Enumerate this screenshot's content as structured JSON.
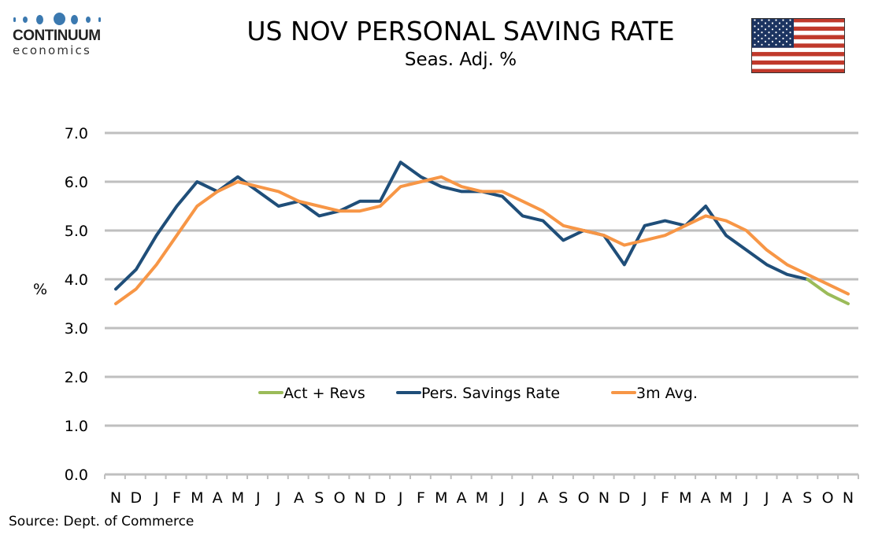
{
  "branding": {
    "logo_name": "CONTINUUM",
    "logo_sub": "economics"
  },
  "header": {
    "title": "US NOV PERSONAL SAVING RATE",
    "subtitle": "Seas. Adj. %",
    "flag_icon": "us-flag-icon"
  },
  "footer": {
    "source": "Source: Dept. of Commerce"
  },
  "colors": {
    "savings": "#1f4e79",
    "avg": "#f79646",
    "act_revs": "#9bbb59",
    "grid": "#bfbfbf",
    "logo_blue": "#3b79b0",
    "flag_blue": "#1c3461",
    "flag_red": "#c0392b"
  },
  "chart_data": {
    "type": "line",
    "title": "US NOV PERSONAL SAVING RATE",
    "subtitle": "Seas. Adj. %",
    "xlabel": "",
    "ylabel": "%",
    "ylim": [
      0,
      7
    ],
    "yticks": [
      "0.0",
      "1.0",
      "2.0",
      "3.0",
      "4.0",
      "5.0",
      "6.0",
      "7.0"
    ],
    "grid": true,
    "legend_position": "bottom-center-inside",
    "categories": [
      "N",
      "D",
      "J",
      "F",
      "M",
      "A",
      "M",
      "J",
      "J",
      "A",
      "S",
      "O",
      "N",
      "D",
      "J",
      "F",
      "M",
      "A",
      "M",
      "J",
      "J",
      "A",
      "S",
      "O",
      "N",
      "D",
      "J",
      "F",
      "M",
      "A",
      "M",
      "J",
      "J",
      "A",
      "S",
      "O",
      "N"
    ],
    "series": [
      {
        "name": "Act + Revs",
        "color": "#9bbb59",
        "values": [
          null,
          null,
          null,
          null,
          null,
          null,
          null,
          null,
          null,
          null,
          null,
          null,
          null,
          null,
          null,
          null,
          null,
          null,
          null,
          null,
          null,
          null,
          null,
          null,
          null,
          null,
          null,
          null,
          null,
          null,
          null,
          null,
          null,
          null,
          4.0,
          3.7,
          3.5
        ]
      },
      {
        "name": "Pers. Savings Rate",
        "color": "#1f4e79",
        "values": [
          3.8,
          4.2,
          4.9,
          5.5,
          6.0,
          5.8,
          6.1,
          5.8,
          5.5,
          5.6,
          5.3,
          5.4,
          5.6,
          5.6,
          6.4,
          6.1,
          5.9,
          5.8,
          5.8,
          5.7,
          5.3,
          5.2,
          4.8,
          5.0,
          4.9,
          4.3,
          5.1,
          5.2,
          5.1,
          5.5,
          4.9,
          4.6,
          4.3,
          4.1,
          4.0,
          null,
          null
        ]
      },
      {
        "name": "3m Avg.",
        "color": "#f79646",
        "values": [
          3.5,
          3.8,
          4.3,
          4.9,
          5.5,
          5.8,
          6.0,
          5.9,
          5.8,
          5.6,
          5.5,
          5.4,
          5.4,
          5.5,
          5.9,
          6.0,
          6.1,
          5.9,
          5.8,
          5.8,
          5.6,
          5.4,
          5.1,
          5.0,
          4.9,
          4.7,
          4.8,
          4.9,
          5.1,
          5.3,
          5.2,
          5.0,
          4.6,
          4.3,
          4.1,
          3.9,
          3.7
        ]
      }
    ]
  }
}
